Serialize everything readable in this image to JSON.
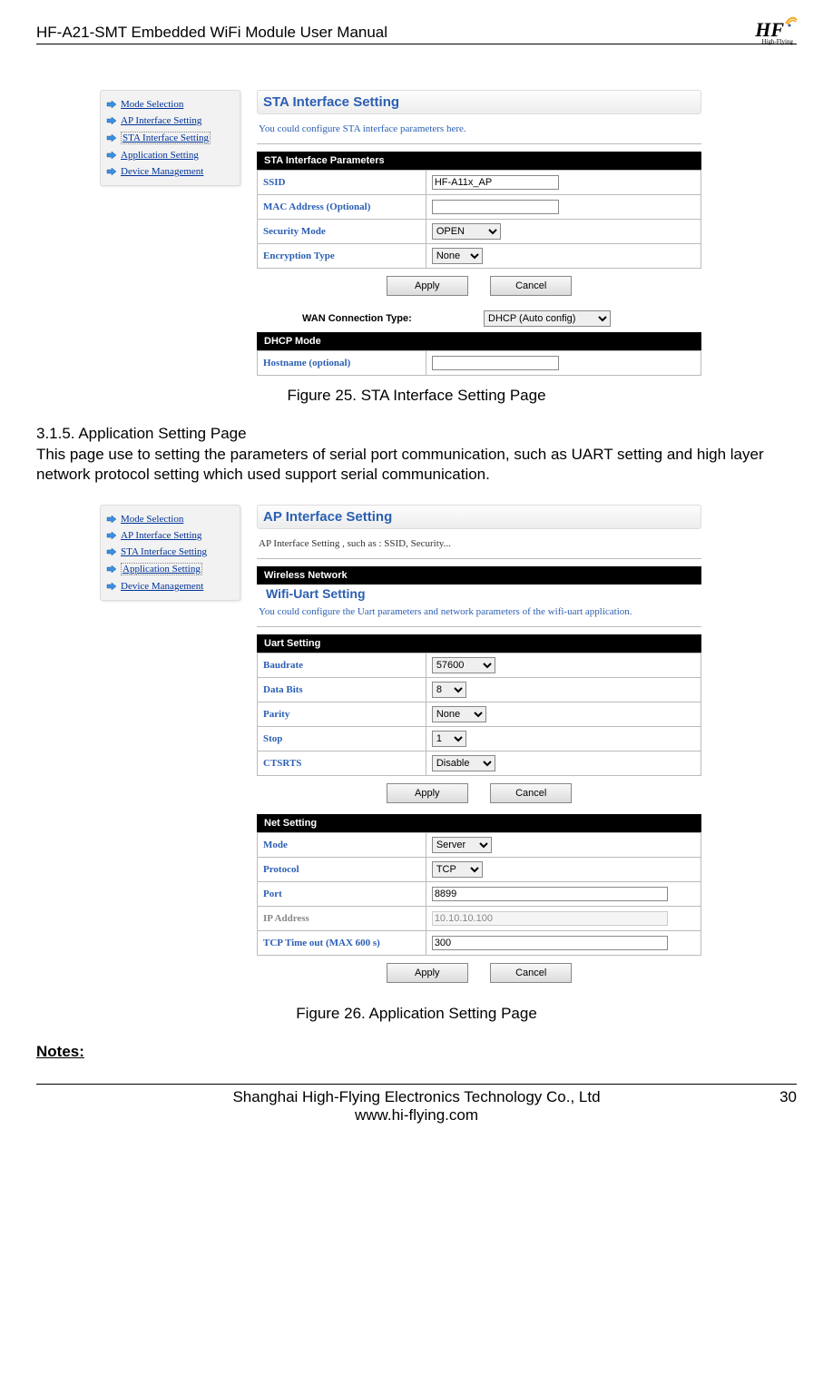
{
  "header": {
    "title": "HF-A21-SMT  Embedded WiFi Module User Manual",
    "logo_text": "HF",
    "logo_sub": "High-Flying"
  },
  "sidebar_items": [
    {
      "label": "Mode Selection",
      "boxed": false
    },
    {
      "label": "AP Interface Setting",
      "boxed": false
    },
    {
      "label": "STA Interface Setting",
      "boxed": true
    },
    {
      "label": "Application Setting",
      "boxed": false
    },
    {
      "label": "Device Management",
      "boxed": false
    }
  ],
  "sidebar2_items": [
    {
      "label": "Mode Selection",
      "boxed": false
    },
    {
      "label": "AP Interface Setting",
      "boxed": false
    },
    {
      "label": "STA Interface Setting",
      "boxed": false
    },
    {
      "label": "Application Setting",
      "boxed": true
    },
    {
      "label": "Device Management",
      "boxed": false
    }
  ],
  "fig25": {
    "title": "STA Interface Setting",
    "desc": "You could configure STA interface parameters here.",
    "section": "STA Interface Parameters",
    "rows": {
      "ssid_label": "SSID",
      "ssid_value": "HF-A11x_AP",
      "mac_label": "MAC Address (Optional)",
      "mac_value": "",
      "sec_label": "Security Mode",
      "sec_value": "OPEN",
      "enc_label": "Encryption Type",
      "enc_value": "None"
    },
    "apply": "Apply",
    "cancel": "Cancel",
    "wan_label": "WAN Connection Type:",
    "wan_value": "DHCP (Auto config)",
    "dhcp_header": "DHCP Mode",
    "host_label": "Hostname (optional)",
    "host_value": "",
    "caption": "Figure 25.    STA Interface Setting Page"
  },
  "section": {
    "num": "3.1.5.    Application Setting Page",
    "text": "This page use to setting the parameters of serial port communication, such as UART setting and high layer network protocol setting which used support serial communication."
  },
  "fig26": {
    "ap_title": "AP Interface Setting",
    "ap_desc": "AP Interface Setting , such as : SSID, Security...",
    "wireless_header": "Wireless Network",
    "uart_title": "Wifi-Uart Setting",
    "uart_desc": "You could configure the Uart parameters and network parameters of the wifi-uart application.",
    "uart_header": "Uart Setting",
    "uart_rows": {
      "baud_label": "Baudrate",
      "baud_value": "57600",
      "bits_label": "Data Bits",
      "bits_value": "8",
      "parity_label": "Parity",
      "parity_value": "None",
      "stop_label": "Stop",
      "stop_value": "1",
      "cts_label": "CTSRTS",
      "cts_value": "Disable"
    },
    "apply": "Apply",
    "cancel": "Cancel",
    "net_header": "Net Setting",
    "net_rows": {
      "mode_label": "Mode",
      "mode_value": "Server",
      "proto_label": "Protocol",
      "proto_value": "TCP",
      "port_label": "Port",
      "port_value": "8899",
      "ip_label": "IP Address",
      "ip_value": "10.10.10.100",
      "tout_label": "TCP Time out (MAX 600 s)",
      "tout_value": "300"
    },
    "caption": "Figure 26.    Application Setting Page"
  },
  "notes": "Notes:",
  "footer": {
    "company": "Shanghai High-Flying Electronics Technology Co., Ltd",
    "url": "www.hi-flying.com",
    "page": "30"
  }
}
